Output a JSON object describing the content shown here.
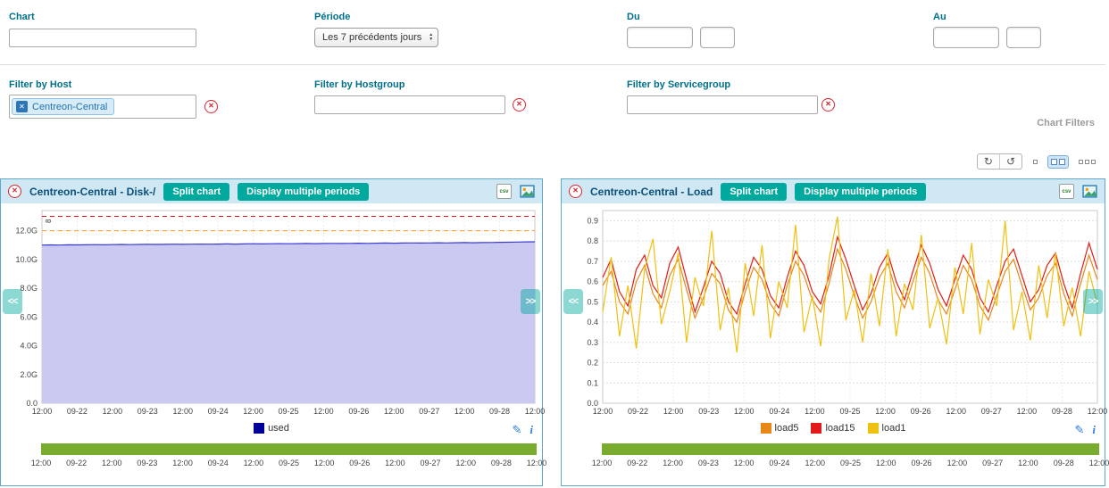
{
  "colors": {
    "accent": "#00a99d",
    "label": "#00708a",
    "title": "#0b4f7a",
    "panel_border": "#5fa8cc",
    "header_bg": "#cfe8f4",
    "tag_bg": "#d8ecf8",
    "tag_border": "#8cc1e8",
    "tag_text": "#1f72ad",
    "tag_chip": "#2e75b6",
    "danger": "#d9232e",
    "green_bar": "#78ab2e"
  },
  "icons": {
    "close": "✕",
    "up": "▲",
    "down": "▼",
    "refresh_cw": "↻",
    "refresh_ccw": "↺",
    "pencil": "✎",
    "info": "i",
    "prev": "<<",
    "next": ">>"
  },
  "filters": {
    "chart_label": "Chart",
    "chart_value": "",
    "periode_label": "Période",
    "periode_value": "Les 7 précédents jours",
    "du_label": "Du",
    "au_label": "Au",
    "host_label": "Filter by Host",
    "host_tag": "Centreon-Central",
    "hostgroup_label": "Filter by Hostgroup",
    "servicegroup_label": "Filter by Servicegroup",
    "section_title": "Chart Filters"
  },
  "panels": [
    {
      "title": "Centreon-Central - Disk-/",
      "split_label": "Split chart",
      "multi_label": "Display multiple periods",
      "csv_label": "csv"
    },
    {
      "title": "Centreon-Central - Load",
      "split_label": "Split chart",
      "multi_label": "Display multiple periods",
      "csv_label": "csv"
    }
  ],
  "chart_data": [
    {
      "type": "area",
      "title": "Centreon-Central - Disk-/",
      "ylabel": "",
      "y_axis_note": "8",
      "ylim": [
        0,
        13.4
      ],
      "y_tick_values": [
        0,
        2,
        4,
        6,
        8,
        10,
        12
      ],
      "y_ticks": [
        "0.0",
        "2.0G",
        "4.0G",
        "6.0G",
        "8.0G",
        "10.0G",
        "12.0G"
      ],
      "x_ticks": [
        "12:00",
        "09-22",
        "12:00",
        "09-23",
        "12:00",
        "09-24",
        "12:00",
        "09-25",
        "12:00",
        "09-26",
        "12:00",
        "09-27",
        "12:00",
        "09-28",
        "12:00"
      ],
      "grid": true,
      "legend_position": "bottom",
      "thresholds": [
        {
          "value": 13.0,
          "color": "#e3131c"
        },
        {
          "value": 12.0,
          "color": "#ff9a13"
        }
      ],
      "series": [
        {
          "name": "used",
          "color": "#3b3bd0",
          "fill": "#c9c9f2",
          "values": [
            11.0,
            11.01,
            11.0,
            11.02,
            11.01,
            11.02,
            11.03,
            11.02,
            11.03,
            11.04,
            11.03,
            11.04,
            11.05,
            11.04,
            11.05,
            11.06,
            11.05,
            11.06,
            11.07,
            11.06,
            11.07,
            11.08,
            11.07,
            11.08,
            11.09,
            11.08,
            11.09,
            11.1,
            11.09,
            11.1,
            11.11,
            11.1,
            11.11,
            11.12,
            11.11,
            11.12,
            11.13,
            11.12,
            11.13,
            11.14,
            11.13,
            11.14,
            11.15,
            11.14,
            11.15,
            11.16,
            11.15,
            11.16,
            11.17,
            11.16,
            11.17,
            11.18,
            11.19,
            11.2,
            11.21,
            11.22,
            11.23
          ]
        }
      ],
      "legend": [
        {
          "label": "used",
          "color": "#00009a"
        }
      ]
    },
    {
      "type": "line",
      "title": "Centreon-Central - Load",
      "ylabel": "",
      "ylim": [
        0,
        0.95
      ],
      "y_tick_values": [
        0,
        0.1,
        0.2,
        0.3,
        0.4,
        0.5,
        0.6,
        0.7,
        0.8,
        0.9
      ],
      "y_ticks": [
        "0.0",
        "0.1",
        "0.2",
        "0.3",
        "0.4",
        "0.5",
        "0.6",
        "0.7",
        "0.8",
        "0.9"
      ],
      "x_ticks": [
        "12:00",
        "09-22",
        "12:00",
        "09-23",
        "12:00",
        "09-24",
        "12:00",
        "09-25",
        "12:00",
        "09-26",
        "12:00",
        "09-27",
        "12:00",
        "09-28",
        "12:00"
      ],
      "grid": true,
      "legend_position": "bottom",
      "series": [
        {
          "name": "load5",
          "color": "#e8861a",
          "values": [
            0.58,
            0.65,
            0.5,
            0.44,
            0.6,
            0.68,
            0.54,
            0.47,
            0.63,
            0.71,
            0.56,
            0.42,
            0.52,
            0.64,
            0.59,
            0.46,
            0.4,
            0.55,
            0.67,
            0.61,
            0.49,
            0.43,
            0.58,
            0.7,
            0.63,
            0.51,
            0.45,
            0.59,
            0.76,
            0.66,
            0.53,
            0.42,
            0.5,
            0.62,
            0.69,
            0.55,
            0.47,
            0.6,
            0.72,
            0.64,
            0.51,
            0.44,
            0.56,
            0.68,
            0.61,
            0.48,
            0.41,
            0.53,
            0.65,
            0.71,
            0.58,
            0.46,
            0.52,
            0.63,
            0.69,
            0.54,
            0.43,
            0.59,
            0.73,
            0.61
          ]
        },
        {
          "name": "load15",
          "color": "#e31a17",
          "values": [
            0.62,
            0.71,
            0.55,
            0.48,
            0.66,
            0.73,
            0.58,
            0.52,
            0.69,
            0.77,
            0.61,
            0.45,
            0.57,
            0.7,
            0.64,
            0.5,
            0.44,
            0.59,
            0.72,
            0.66,
            0.53,
            0.47,
            0.62,
            0.75,
            0.68,
            0.55,
            0.49,
            0.63,
            0.82,
            0.71,
            0.58,
            0.46,
            0.54,
            0.67,
            0.74,
            0.6,
            0.51,
            0.65,
            0.78,
            0.69,
            0.56,
            0.48,
            0.61,
            0.73,
            0.66,
            0.52,
            0.45,
            0.58,
            0.7,
            0.76,
            0.63,
            0.5,
            0.56,
            0.68,
            0.74,
            0.59,
            0.47,
            0.64,
            0.79,
            0.66
          ]
        },
        {
          "name": "load1",
          "color": "#f0c011",
          "values": [
            0.45,
            0.72,
            0.33,
            0.58,
            0.27,
            0.66,
            0.81,
            0.39,
            0.55,
            0.74,
            0.3,
            0.62,
            0.48,
            0.85,
            0.36,
            0.57,
            0.25,
            0.69,
            0.43,
            0.78,
            0.32,
            0.6,
            0.47,
            0.88,
            0.35,
            0.53,
            0.28,
            0.71,
            0.92,
            0.41,
            0.56,
            0.3,
            0.64,
            0.38,
            0.76,
            0.33,
            0.59,
            0.46,
            0.83,
            0.37,
            0.52,
            0.29,
            0.67,
            0.44,
            0.79,
            0.34,
            0.61,
            0.48,
            0.9,
            0.36,
            0.55,
            0.31,
            0.68,
            0.42,
            0.74,
            0.38,
            0.57,
            0.33,
            0.65,
            0.49
          ]
        }
      ],
      "legend": [
        {
          "label": "load5",
          "color": "#e8861a"
        },
        {
          "label": "load15",
          "color": "#e31a17"
        },
        {
          "label": "load1",
          "color": "#f0c011"
        }
      ]
    }
  ]
}
